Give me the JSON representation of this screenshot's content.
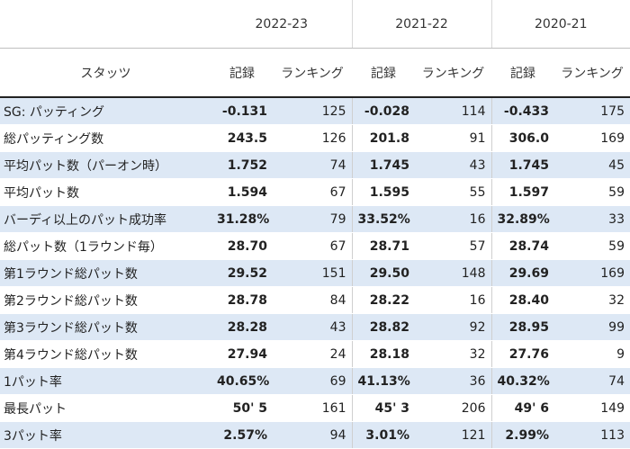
{
  "years": [
    "2022-23",
    "2021-22",
    "2020-21"
  ],
  "header": {
    "stat_label": "スタッツ",
    "record_label": "記録",
    "ranking_label": "ランキング"
  },
  "rows": [
    {
      "label": "SG: パッティング",
      "v1": "-0.131",
      "r1": "125",
      "v2": "-0.028",
      "r2": "114",
      "v3": "-0.433",
      "r3": "175"
    },
    {
      "label": "総パッティング数",
      "v1": "243.5",
      "r1": "126",
      "v2": "201.8",
      "r2": "91",
      "v3": "306.0",
      "r3": "169"
    },
    {
      "label": "平均パット数（パーオン時）",
      "v1": "1.752",
      "r1": "74",
      "v2": "1.745",
      "r2": "43",
      "v3": "1.745",
      "r3": "45"
    },
    {
      "label": "平均パット数",
      "v1": "1.594",
      "r1": "67",
      "v2": "1.595",
      "r2": "55",
      "v3": "1.597",
      "r3": "59"
    },
    {
      "label": "バーディ以上のパット成功率",
      "v1": "31.28%",
      "r1": "79",
      "v2": "33.52%",
      "r2": "16",
      "v3": "32.89%",
      "r3": "33"
    },
    {
      "label": "総パット数（1ラウンド毎）",
      "v1": "28.70",
      "r1": "67",
      "v2": "28.71",
      "r2": "57",
      "v3": "28.74",
      "r3": "59"
    },
    {
      "label": "第1ラウンド総パット数",
      "v1": "29.52",
      "r1": "151",
      "v2": "29.50",
      "r2": "148",
      "v3": "29.69",
      "r3": "169"
    },
    {
      "label": "第2ラウンド総パット数",
      "v1": "28.78",
      "r1": "84",
      "v2": "28.22",
      "r2": "16",
      "v3": "28.40",
      "r3": "32"
    },
    {
      "label": "第3ラウンド総パット数",
      "v1": "28.28",
      "r1": "43",
      "v2": "28.82",
      "r2": "92",
      "v3": "28.95",
      "r3": "99"
    },
    {
      "label": "第4ラウンド総パット数",
      "v1": "27.94",
      "r1": "24",
      "v2": "28.18",
      "r2": "32",
      "v3": "27.76",
      "r3": "9"
    },
    {
      "label": "1パット率",
      "v1": "40.65%",
      "r1": "69",
      "v2": "41.13%",
      "r2": "36",
      "v3": "40.32%",
      "r3": "74"
    },
    {
      "label": "最長パット",
      "v1": "50' 5",
      "r1": "161",
      "v2": "45' 3",
      "r2": "206",
      "v3": "49' 6",
      "r3": "149"
    },
    {
      "label": "3パット率",
      "v1": "2.57%",
      "r1": "94",
      "v2": "3.01%",
      "r2": "121",
      "v3": "2.99%",
      "r3": "113"
    }
  ],
  "colors": {
    "shaded_row": "#dde8f5",
    "header_rule": "#222222"
  }
}
